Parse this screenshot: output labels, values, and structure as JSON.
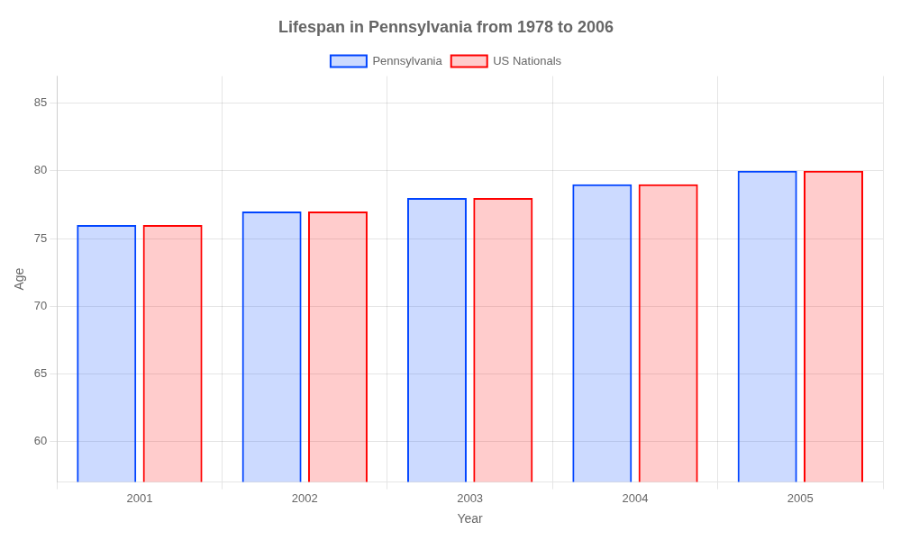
{
  "chart_data": {
    "type": "bar",
    "title": "Lifespan in Pennsylvania from 1978 to 2006",
    "x_label": "Year",
    "y_label": "Age",
    "categories": [
      "2001",
      "2002",
      "2003",
      "2004",
      "2005"
    ],
    "series": [
      {
        "name": "Pennsylvania",
        "color": "#0044ff",
        "values": [
          76,
          77,
          78,
          79,
          80
        ]
      },
      {
        "name": "US Nationals",
        "color": "#ff0000",
        "values": [
          76,
          77,
          78,
          79,
          80
        ]
      }
    ],
    "ylim": [
      57,
      87
    ],
    "yticks": [
      60,
      65,
      70,
      75,
      80,
      85
    ],
    "grid": true,
    "legend": "top"
  }
}
